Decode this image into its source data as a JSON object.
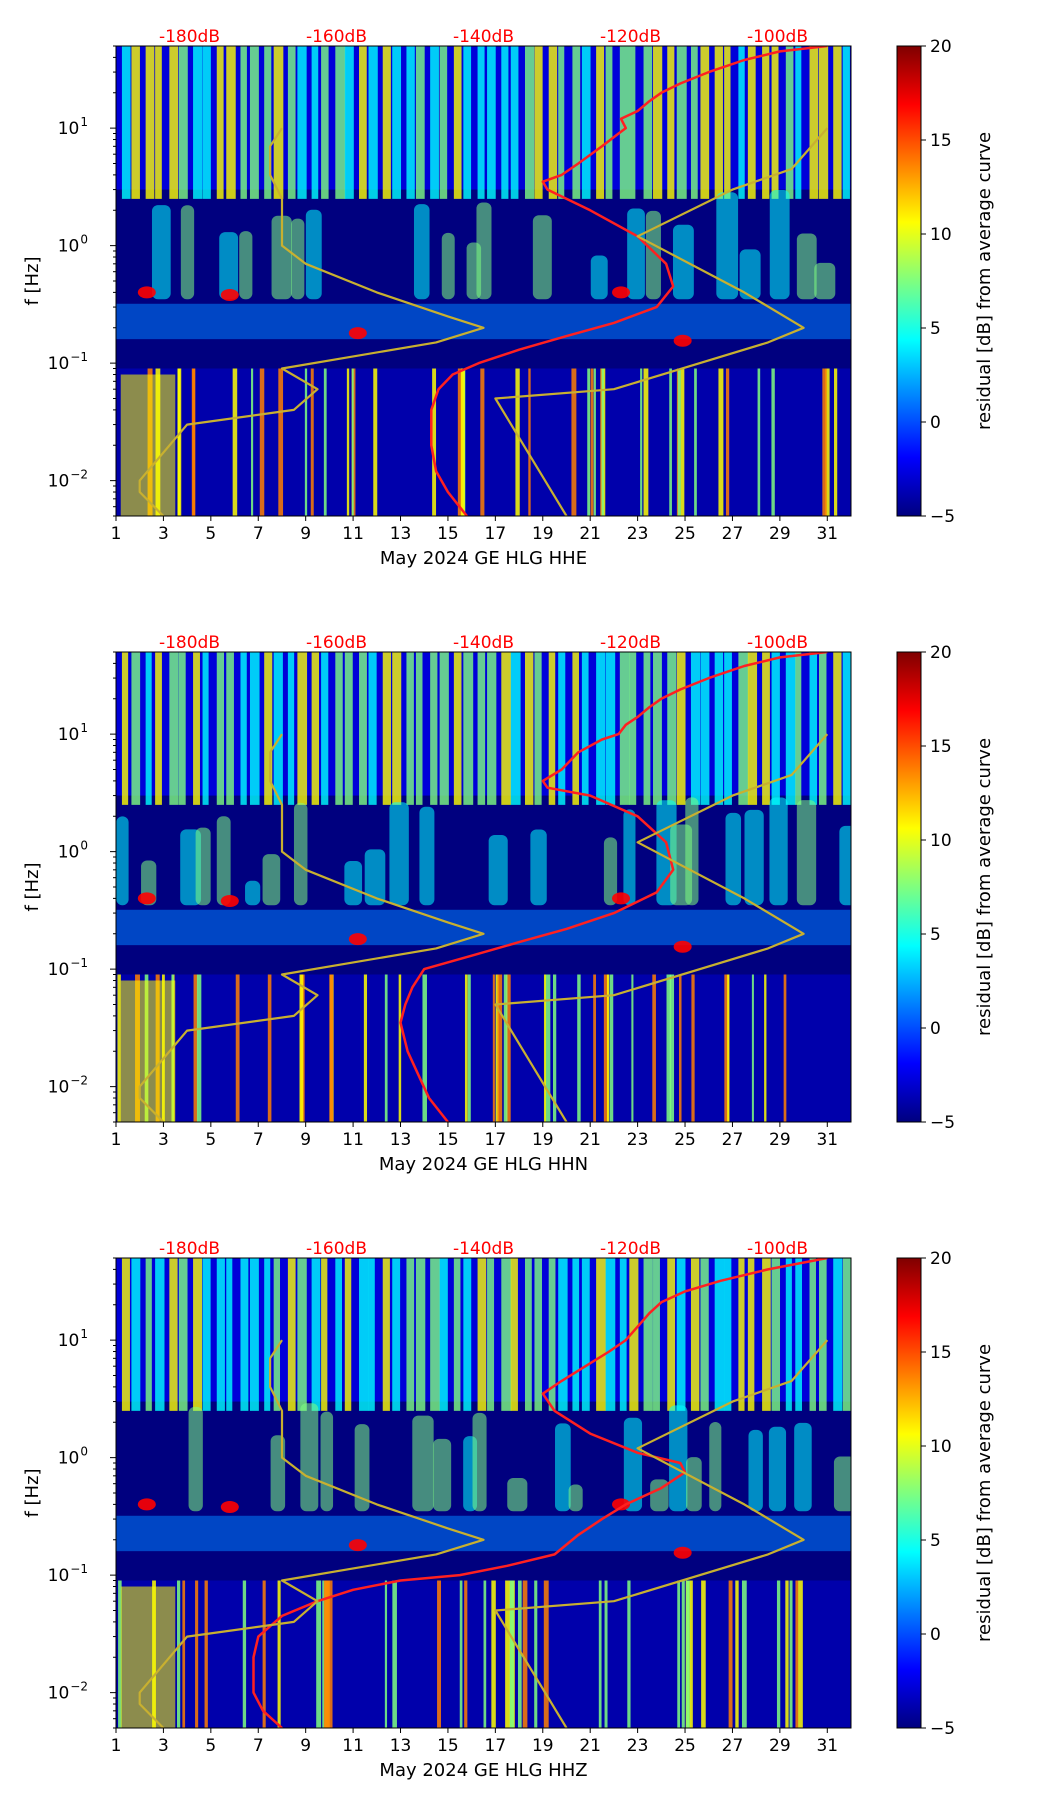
{
  "colormap": [
    "#00007f",
    "#0000ff",
    "#007fff",
    "#00ffff",
    "#7fff7f",
    "#ffff00",
    "#ff7f00",
    "#ff0000",
    "#7f0000"
  ],
  "colors": {
    "model_curve": "#ff2020",
    "noise_model": "#c8b030",
    "top_labels": "#ff0000",
    "axes": "#000000"
  },
  "chart_data": [
    {
      "type": "heatmap",
      "xlabel": "May 2024 GE HLG  HHE",
      "ylabel": "f [Hz]",
      "x_ticks": [
        "1",
        "3",
        "5",
        "7",
        "9",
        "11",
        "13",
        "15",
        "17",
        "19",
        "21",
        "23",
        "25",
        "27",
        "29",
        "31"
      ],
      "x_range": [
        1,
        32
      ],
      "y_scale": "log",
      "y_range": [
        0.005,
        50
      ],
      "y_ticks": [
        {
          "v": 0.01,
          "base": "10",
          "exp": "−2"
        },
        {
          "v": 0.1,
          "base": "10",
          "exp": "−1"
        },
        {
          "v": 1,
          "base": "10",
          "exp": "0"
        },
        {
          "v": 10,
          "base": "10",
          "exp": "1"
        }
      ],
      "top_axis_labels": [
        "-180dB",
        "-160dB",
        "-140dB",
        "-120dB",
        "-100dB"
      ],
      "top_axis_values": [
        -180,
        -160,
        -140,
        -120,
        -100
      ],
      "colorbar": {
        "label": "residual [dB] from average curve",
        "range": [
          -5,
          20
        ],
        "ticks": [
          "−5",
          "0",
          "5",
          "10",
          "15",
          "20"
        ]
      },
      "series": [
        {
          "x": [
            15.8,
            15.0,
            14.5,
            14.3,
            14.3,
            14.6,
            15.2,
            16.3,
            18.0,
            20.0,
            22.0,
            23.8,
            24.5,
            24.2,
            23.0,
            21.0,
            19.2,
            19.0,
            19.8,
            20.5,
            21.5,
            22.2,
            22.5,
            22.3,
            23.0,
            23.5,
            24.0,
            24.8,
            26.0,
            27.5,
            29.0,
            31.0
          ],
          "y": [
            0.005,
            0.008,
            0.012,
            0.02,
            0.04,
            0.06,
            0.08,
            0.1,
            0.13,
            0.17,
            0.22,
            0.3,
            0.45,
            0.7,
            1.2,
            2.0,
            3.0,
            3.5,
            4.0,
            5.0,
            7.0,
            9.0,
            10.0,
            12.0,
            14.0,
            17.0,
            20.0,
            24.0,
            30.0,
            38.0,
            45.0,
            50.0
          ]
        },
        {
          "x": [
            3.0,
            2.0,
            2.0,
            4.0,
            8.5,
            9.5,
            8.0,
            14.5,
            16.5,
            15.0,
            12.0,
            9.0,
            8.0,
            8.0,
            8.0,
            7.5,
            7.5,
            8.0
          ],
          "y": [
            0.005,
            0.008,
            0.01,
            0.03,
            0.04,
            0.06,
            0.09,
            0.15,
            0.2,
            0.25,
            0.4,
            0.7,
            1.0,
            1.5,
            2.5,
            4.0,
            7.0,
            10.0
          ]
        },
        {
          "x": [
            20.0,
            17.0,
            22.0,
            28.5,
            30.0,
            27.5,
            23.0,
            27.0,
            29.5,
            31.0
          ],
          "y": [
            0.005,
            0.05,
            0.06,
            0.15,
            0.2,
            0.4,
            1.2,
            3.0,
            4.5,
            10.0
          ]
        }
      ]
    },
    {
      "type": "heatmap",
      "xlabel": "May 2024 GE HLG  HHN",
      "ylabel": "f [Hz]",
      "x_ticks": [
        "1",
        "3",
        "5",
        "7",
        "9",
        "11",
        "13",
        "15",
        "17",
        "19",
        "21",
        "23",
        "25",
        "27",
        "29",
        "31"
      ],
      "x_range": [
        1,
        32
      ],
      "y_scale": "log",
      "y_range": [
        0.005,
        50
      ],
      "y_ticks": [
        {
          "v": 0.01,
          "base": "10",
          "exp": "−2"
        },
        {
          "v": 0.1,
          "base": "10",
          "exp": "−1"
        },
        {
          "v": 1,
          "base": "10",
          "exp": "0"
        },
        {
          "v": 10,
          "base": "10",
          "exp": "1"
        }
      ],
      "top_axis_labels": [
        "-180dB",
        "-160dB",
        "-140dB",
        "-120dB",
        "-100dB"
      ],
      "top_axis_values": [
        -180,
        -160,
        -140,
        -120,
        -100
      ],
      "colorbar": {
        "label": "residual [dB] from average curve",
        "range": [
          -5,
          20
        ],
        "ticks": [
          "−5",
          "0",
          "5",
          "10",
          "15",
          "20"
        ]
      },
      "series": [
        {
          "x": [
            15.0,
            14.2,
            13.8,
            13.3,
            13.0,
            13.2,
            13.5,
            14.0,
            16.0,
            18.0,
            20.0,
            22.0,
            23.8,
            24.5,
            24.2,
            23.0,
            21.0,
            19.2,
            19.0,
            19.8,
            20.5,
            21.5,
            22.2,
            22.5,
            23.0,
            23.5,
            24.0,
            24.8,
            26.0,
            27.5,
            29.0,
            31.0
          ],
          "y": [
            0.005,
            0.008,
            0.012,
            0.02,
            0.035,
            0.05,
            0.07,
            0.1,
            0.13,
            0.17,
            0.22,
            0.3,
            0.45,
            0.7,
            1.2,
            2.0,
            3.0,
            3.5,
            4.0,
            5.0,
            7.0,
            9.0,
            10.0,
            12.0,
            14.0,
            17.0,
            20.0,
            24.0,
            30.0,
            38.0,
            45.0,
            50.0
          ]
        },
        {
          "x": [
            3.0,
            2.0,
            2.0,
            4.0,
            8.5,
            9.5,
            8.0,
            14.5,
            16.5,
            15.0,
            12.0,
            9.0,
            8.0,
            8.0,
            8.0,
            7.5,
            7.5,
            8.0
          ],
          "y": [
            0.005,
            0.008,
            0.01,
            0.03,
            0.04,
            0.06,
            0.09,
            0.15,
            0.2,
            0.25,
            0.4,
            0.7,
            1.0,
            1.5,
            2.5,
            4.0,
            7.0,
            10.0
          ]
        },
        {
          "x": [
            20.0,
            17.0,
            22.0,
            28.5,
            30.0,
            27.5,
            23.0,
            27.0,
            29.5,
            31.0
          ],
          "y": [
            0.005,
            0.05,
            0.06,
            0.15,
            0.2,
            0.4,
            1.2,
            3.0,
            4.5,
            10.0
          ]
        }
      ]
    },
    {
      "type": "heatmap",
      "xlabel": "May 2024 GE HLG  HHZ",
      "ylabel": "f [Hz]",
      "x_ticks": [
        "1",
        "3",
        "5",
        "7",
        "9",
        "11",
        "13",
        "15",
        "17",
        "19",
        "21",
        "23",
        "25",
        "27",
        "29",
        "31"
      ],
      "x_range": [
        1,
        32
      ],
      "y_scale": "log",
      "y_range": [
        0.005,
        50
      ],
      "y_ticks": [
        {
          "v": 0.01,
          "base": "10",
          "exp": "−2"
        },
        {
          "v": 0.1,
          "base": "10",
          "exp": "−1"
        },
        {
          "v": 1,
          "base": "10",
          "exp": "0"
        },
        {
          "v": 10,
          "base": "10",
          "exp": "1"
        }
      ],
      "top_axis_labels": [
        "-180dB",
        "-160dB",
        "-140dB",
        "-120dB",
        "-100dB"
      ],
      "top_axis_values": [
        -180,
        -160,
        -140,
        -120,
        -100
      ],
      "colorbar": {
        "label": "residual [dB] from average curve",
        "range": [
          -5,
          20
        ],
        "ticks": [
          "−5",
          "0",
          "5",
          "10",
          "15",
          "20"
        ]
      },
      "series": [
        {
          "x": [
            8.0,
            7.2,
            6.8,
            6.8,
            7.0,
            8.0,
            9.5,
            11.0,
            13.0,
            15.5,
            17.5,
            19.5,
            20.5,
            21.5,
            22.5,
            24.0,
            25.0,
            24.8,
            23.0,
            21.0,
            19.5,
            19.0,
            19.8,
            20.8,
            21.8,
            22.5,
            23.0,
            23.5,
            24.0,
            25.0,
            26.5,
            28.5,
            31.0
          ],
          "y": [
            0.005,
            0.007,
            0.01,
            0.02,
            0.03,
            0.045,
            0.06,
            0.075,
            0.09,
            0.1,
            0.12,
            0.15,
            0.22,
            0.3,
            0.4,
            0.55,
            0.75,
            0.9,
            1.1,
            1.6,
            2.5,
            3.5,
            4.5,
            6.0,
            8.0,
            10.0,
            13.0,
            17.0,
            21.0,
            26.0,
            32.0,
            40.0,
            50.0
          ]
        },
        {
          "x": [
            3.0,
            2.0,
            2.0,
            4.0,
            8.5,
            9.5,
            8.0,
            14.5,
            16.5,
            15.0,
            12.0,
            9.0,
            8.0,
            8.0,
            8.0,
            7.5,
            7.5,
            8.0
          ],
          "y": [
            0.005,
            0.008,
            0.01,
            0.03,
            0.04,
            0.06,
            0.09,
            0.15,
            0.2,
            0.25,
            0.4,
            0.7,
            1.0,
            1.5,
            2.5,
            4.0,
            7.0,
            10.0
          ]
        },
        {
          "x": [
            20.0,
            17.0,
            22.0,
            28.5,
            30.0,
            27.5,
            23.0,
            27.0,
            29.5,
            31.0
          ],
          "y": [
            0.005,
            0.05,
            0.06,
            0.15,
            0.2,
            0.4,
            1.2,
            3.0,
            4.5,
            10.0
          ]
        }
      ]
    }
  ]
}
